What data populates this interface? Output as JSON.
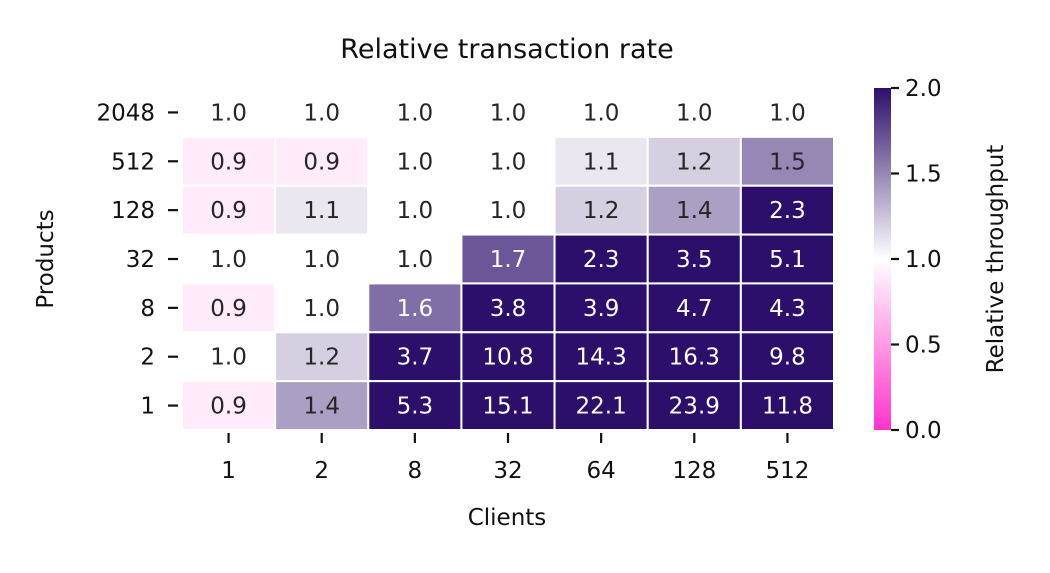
{
  "chart_data": {
    "type": "heatmap",
    "title": "Relative transaction rate",
    "xlabel": "Clients",
    "ylabel": "Products",
    "x_categories": [
      "1",
      "2",
      "8",
      "32",
      "64",
      "128",
      "512"
    ],
    "y_categories": [
      "2048",
      "512",
      "128",
      "32",
      "8",
      "2",
      "1"
    ],
    "values": [
      [
        1.0,
        1.0,
        1.0,
        1.0,
        1.0,
        1.0,
        1.0
      ],
      [
        0.9,
        0.9,
        1.0,
        1.0,
        1.1,
        1.2,
        1.5
      ],
      [
        0.9,
        1.1,
        1.0,
        1.0,
        1.2,
        1.4,
        2.3
      ],
      [
        1.0,
        1.0,
        1.0,
        1.7,
        2.3,
        3.5,
        5.1
      ],
      [
        0.9,
        1.0,
        1.6,
        3.8,
        3.9,
        4.7,
        4.3
      ],
      [
        1.0,
        1.2,
        3.7,
        10.8,
        14.3,
        16.3,
        9.8
      ],
      [
        0.9,
        1.4,
        5.3,
        15.1,
        22.1,
        23.9,
        11.8
      ]
    ],
    "cell_labels": [
      [
        "1.0",
        "1.0",
        "1.0",
        "1.0",
        "1.0",
        "1.0",
        "1.0"
      ],
      [
        "0.9",
        "0.9",
        "1.0",
        "1.0",
        "1.1",
        "1.2",
        "1.5"
      ],
      [
        "0.9",
        "1.1",
        "1.0",
        "1.0",
        "1.2",
        "1.4",
        "2.3"
      ],
      [
        "1.0",
        "1.0",
        "1.0",
        "1.7",
        "2.3",
        "3.5",
        "5.1"
      ],
      [
        "0.9",
        "1.0",
        "1.6",
        "3.8",
        "3.9",
        "4.7",
        "4.3"
      ],
      [
        "1.0",
        "1.2",
        "3.7",
        "10.8",
        "14.3",
        "16.3",
        "9.8"
      ],
      [
        "0.9",
        "1.4",
        "5.3",
        "15.1",
        "22.1",
        "23.9",
        "11.8"
      ]
    ],
    "colorbar": {
      "label": "Relative throughput",
      "range": [
        0.0,
        2.0
      ],
      "ticks": [
        "0.0",
        "0.5",
        "1.0",
        "1.5",
        "2.0"
      ],
      "colors": {
        "low": "#ff33cc",
        "mid": "#ffffff",
        "high": "#2c0f6b"
      }
    },
    "grid": false,
    "cell_border_color": "#ffffff"
  }
}
